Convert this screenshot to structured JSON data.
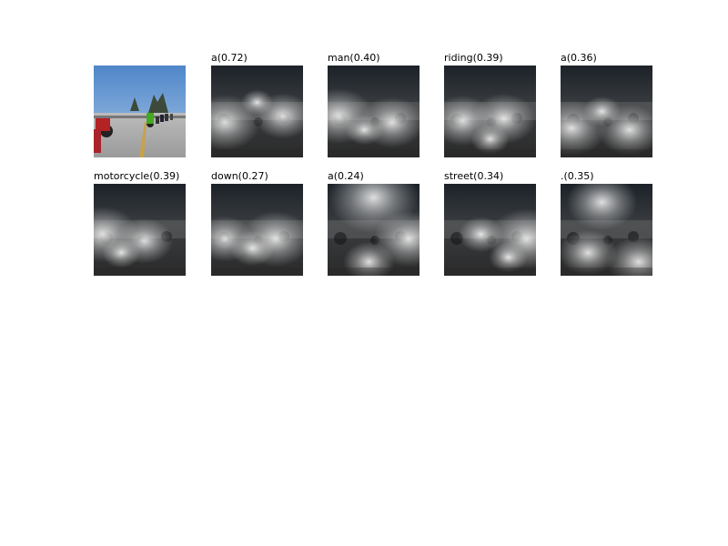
{
  "original": {
    "alt": "photo-street-motorcycles"
  },
  "attention_maps": [
    {
      "word": "a",
      "score": "0.72",
      "label": "a(0.72)",
      "spots": [
        [
          0.15,
          0.62,
          0.55
        ],
        [
          0.78,
          0.55,
          0.45
        ],
        [
          0.5,
          0.4,
          0.25
        ]
      ]
    },
    {
      "word": "man",
      "score": "0.40",
      "label": "man(0.40)",
      "spots": [
        [
          0.12,
          0.55,
          0.55
        ],
        [
          0.7,
          0.62,
          0.5
        ],
        [
          0.4,
          0.7,
          0.3
        ]
      ]
    },
    {
      "word": "riding",
      "score": "0.39",
      "label": "riding(0.39)",
      "spots": [
        [
          0.2,
          0.6,
          0.5
        ],
        [
          0.65,
          0.58,
          0.5
        ],
        [
          0.5,
          0.8,
          0.3
        ]
      ]
    },
    {
      "word": "a",
      "score": "0.36",
      "label": "a(0.36)",
      "spots": [
        [
          0.12,
          0.68,
          0.55
        ],
        [
          0.75,
          0.7,
          0.5
        ],
        [
          0.45,
          0.5,
          0.3
        ]
      ]
    },
    {
      "word": "motorcycle",
      "score": "0.39",
      "label": "motorcycle(0.39)",
      "spots": [
        [
          0.1,
          0.55,
          0.55
        ],
        [
          0.55,
          0.62,
          0.45
        ],
        [
          0.3,
          0.75,
          0.3
        ]
      ]
    },
    {
      "word": "down",
      "score": "0.27",
      "label": "down(0.27)",
      "spots": [
        [
          0.15,
          0.6,
          0.45
        ],
        [
          0.7,
          0.6,
          0.55
        ],
        [
          0.45,
          0.7,
          0.35
        ]
      ]
    },
    {
      "word": "a",
      "score": "0.24",
      "label": "a(0.24)",
      "spots": [
        [
          0.5,
          0.15,
          0.7
        ],
        [
          0.88,
          0.6,
          0.55
        ],
        [
          0.45,
          0.85,
          0.4
        ]
      ]
    },
    {
      "word": "street",
      "score": "0.34",
      "label": "street(0.34)",
      "spots": [
        [
          0.9,
          0.6,
          0.6
        ],
        [
          0.4,
          0.55,
          0.35
        ],
        [
          0.7,
          0.8,
          0.3
        ]
      ]
    },
    {
      "word": ".",
      "score": "0.35",
      "label": ".(0.35)",
      "spots": [
        [
          0.45,
          0.2,
          0.55
        ],
        [
          0.3,
          0.75,
          0.45
        ],
        [
          0.85,
          0.85,
          0.5
        ]
      ]
    }
  ]
}
